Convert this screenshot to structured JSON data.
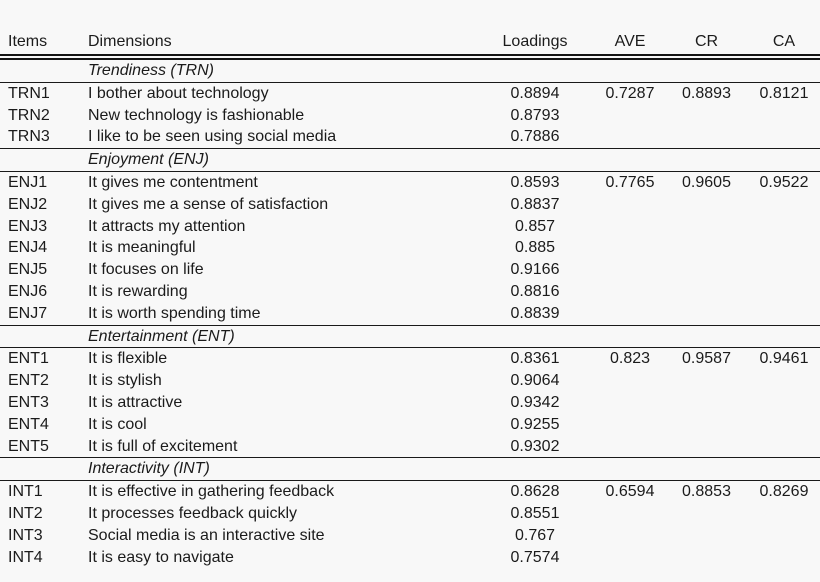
{
  "colors": {
    "background": "#f8f8f8",
    "text": "#1b1b1b",
    "rule": "#1a1a1a"
  },
  "table": {
    "columns": [
      "Items",
      "Dimensions",
      "Loadings",
      "AVE",
      "CR",
      "CA"
    ],
    "sections": [
      {
        "title": "Trendiness (TRN)",
        "rows": [
          {
            "item": "TRN1",
            "dimension": "I bother about technology",
            "loading": "0.8894",
            "ave": "0.7287",
            "cr": "0.8893",
            "ca": "0.8121"
          },
          {
            "item": "TRN2",
            "dimension": "New technology is fashionable",
            "loading": "0.8793",
            "ave": "",
            "cr": "",
            "ca": ""
          },
          {
            "item": "TRN3",
            "dimension": "I like to be seen using social media",
            "loading": "0.7886",
            "ave": "",
            "cr": "",
            "ca": ""
          }
        ]
      },
      {
        "title": "Enjoyment (ENJ)",
        "rows": [
          {
            "item": "ENJ1",
            "dimension": "It gives me contentment",
            "loading": "0.8593",
            "ave": "0.7765",
            "cr": "0.9605",
            "ca": "0.9522"
          },
          {
            "item": "ENJ2",
            "dimension": "It gives me a sense of satisfaction",
            "loading": "0.8837",
            "ave": "",
            "cr": "",
            "ca": ""
          },
          {
            "item": "ENJ3",
            "dimension": "It attracts my attention",
            "loading": "0.857",
            "ave": "",
            "cr": "",
            "ca": ""
          },
          {
            "item": "ENJ4",
            "dimension": "It is meaningful",
            "loading": "0.885",
            "ave": "",
            "cr": "",
            "ca": ""
          },
          {
            "item": "ENJ5",
            "dimension": "It focuses on life",
            "loading": "0.9166",
            "ave": "",
            "cr": "",
            "ca": ""
          },
          {
            "item": "ENJ6",
            "dimension": "It is rewarding",
            "loading": "0.8816",
            "ave": "",
            "cr": "",
            "ca": ""
          },
          {
            "item": "ENJ7",
            "dimension": "It is worth spending time",
            "loading": "0.8839",
            "ave": "",
            "cr": "",
            "ca": ""
          }
        ]
      },
      {
        "title": "Entertainment (ENT)",
        "rows": [
          {
            "item": "ENT1",
            "dimension": "It is flexible",
            "loading": "0.8361",
            "ave": "0.823",
            "cr": "0.9587",
            "ca": "0.9461"
          },
          {
            "item": "ENT2",
            "dimension": "It is stylish",
            "loading": "0.9064",
            "ave": "",
            "cr": "",
            "ca": ""
          },
          {
            "item": "ENT3",
            "dimension": "It is attractive",
            "loading": "0.9342",
            "ave": "",
            "cr": "",
            "ca": ""
          },
          {
            "item": "ENT4",
            "dimension": "It is cool",
            "loading": "0.9255",
            "ave": "",
            "cr": "",
            "ca": ""
          },
          {
            "item": "ENT5",
            "dimension": "It is full of excitement",
            "loading": "0.9302",
            "ave": "",
            "cr": "",
            "ca": ""
          }
        ]
      },
      {
        "title": "Interactivity (INT)",
        "rows": [
          {
            "item": "INT1",
            "dimension": "It is effective in gathering feedback",
            "loading": "0.8628",
            "ave": "0.6594",
            "cr": "0.8853",
            "ca": "0.8269"
          },
          {
            "item": "INT2",
            "dimension": "It processes feedback quickly",
            "loading": "0.8551",
            "ave": "",
            "cr": "",
            "ca": ""
          },
          {
            "item": "INT3",
            "dimension": "Social media is an interactive site",
            "loading": "0.767",
            "ave": "",
            "cr": "",
            "ca": ""
          },
          {
            "item": "INT4",
            "dimension": "It is easy to navigate",
            "loading": "0.7574",
            "ave": "",
            "cr": "",
            "ca": ""
          }
        ]
      }
    ]
  }
}
